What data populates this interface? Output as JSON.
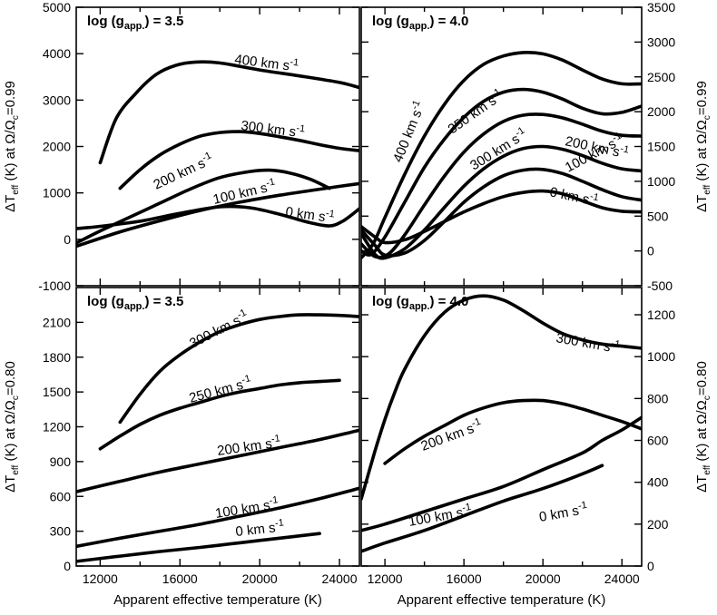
{
  "chart_data": [
    {
      "type": "line",
      "id": "tl",
      "title": "log (g_app.) = 3.5",
      "title_main": "log (g",
      "title_sub": "app.",
      "title_tail": ") = 3.5",
      "xlim": [
        10800,
        25000
      ],
      "ylim": [
        -1000,
        5000
      ],
      "yticks": [
        -1000,
        0,
        1000,
        2000,
        3000,
        4000,
        5000
      ],
      "yaxis_side": "left",
      "ylabel": "ΔTeff (K) at Ω/Ωc=0.99",
      "series": [
        {
          "name": "400 km s-1",
          "label_main": "400 km s",
          "label_sup": "-1",
          "x": [
            12000,
            12800,
            13800,
            14800,
            15800,
            16800,
            18000,
            20000,
            22000,
            24000,
            25000
          ],
          "y": [
            1650,
            2600,
            3150,
            3550,
            3750,
            3820,
            3800,
            3650,
            3520,
            3380,
            3270
          ]
        },
        {
          "name": "300 km s-1",
          "label_main": "300 km s",
          "label_sup": "-1",
          "x": [
            13000,
            14000,
            15000,
            16000,
            17000,
            18000,
            19000,
            20000,
            21000,
            22000,
            23000,
            24000,
            25000
          ],
          "y": [
            1100,
            1500,
            1820,
            2050,
            2220,
            2300,
            2320,
            2280,
            2210,
            2130,
            2040,
            1960,
            1910
          ]
        },
        {
          "name": "200 km s-1",
          "label_main": "200 km s",
          "label_sup": "-1",
          "x": [
            10800,
            12000,
            13500,
            15000,
            16500,
            18000,
            19500,
            20500,
            21500,
            22500,
            23500
          ],
          "y": [
            -80,
            180,
            480,
            780,
            1080,
            1330,
            1460,
            1490,
            1430,
            1300,
            1100
          ]
        },
        {
          "name": "100 km s-1",
          "label_main": "100 km s",
          "label_sup": "-1",
          "x": [
            10800,
            13000,
            15000,
            17000,
            19000,
            21000,
            23000,
            25000
          ],
          "y": [
            -150,
            160,
            400,
            620,
            800,
            950,
            1080,
            1200
          ]
        },
        {
          "name": "0 km s-1",
          "label_main": "0 km s",
          "label_sup": "-1",
          "x": [
            10800,
            12000,
            14000,
            16000,
            18000,
            19500,
            21000,
            22500,
            23500,
            24200,
            25000
          ],
          "y": [
            230,
            280,
            390,
            560,
            700,
            680,
            540,
            360,
            290,
            400,
            660
          ]
        }
      ]
    },
    {
      "type": "line",
      "id": "tr",
      "title": "log (g_app.) = 4.0",
      "title_main": "log (g",
      "title_sub": "app.",
      "title_tail": ") = 4.0",
      "xlim": [
        10800,
        25000
      ],
      "ylim": [
        -500,
        3500
      ],
      "yticks": [
        -500,
        0,
        500,
        1000,
        1500,
        2000,
        2500,
        3000,
        3500
      ],
      "yaxis_side": "right",
      "ylabel": "ΔTeff (K) at Ω/Ωc=0.99",
      "series": [
        {
          "name": "400 km s-1",
          "label_main": "400 km s",
          "label_sup": "-1",
          "x": [
            10800,
            11400,
            12000,
            13000,
            14000,
            15000,
            16000,
            17000,
            18000,
            19000,
            20000,
            21000,
            22000,
            23000,
            24000,
            25000
          ],
          "y": [
            -100,
            100,
            480,
            1100,
            1650,
            2100,
            2450,
            2680,
            2800,
            2850,
            2830,
            2740,
            2600,
            2470,
            2400,
            2400
          ]
        },
        {
          "name": "350 km s-1",
          "label_main": "350 km s",
          "label_sup": "-1",
          "x": [
            10800,
            11300,
            12000,
            13000,
            14000,
            15000,
            16000,
            17000,
            18000,
            19000,
            20000,
            21000,
            22000,
            23000,
            24000,
            25000
          ],
          "y": [
            0,
            -50,
            200,
            700,
            1200,
            1600,
            1920,
            2150,
            2280,
            2320,
            2280,
            2180,
            2050,
            1970,
            1990,
            2080
          ]
        },
        {
          "name": "300 km s-1",
          "label_main": "300 km s",
          "label_sup": "-1",
          "x": [
            10800,
            11500,
            12200,
            13000,
            14000,
            15000,
            16000,
            17000,
            18000,
            19000,
            20000,
            21000,
            22000,
            23000,
            24000,
            25000
          ],
          "y": [
            100,
            -80,
            -40,
            230,
            660,
            1070,
            1420,
            1680,
            1860,
            1950,
            1960,
            1910,
            1820,
            1720,
            1660,
            1650
          ]
        },
        {
          "name": "200 km s-1",
          "label_main": "200 km s",
          "label_sup": "-1",
          "x": [
            10800,
            11500,
            12000,
            13000,
            14000,
            15000,
            16000,
            17000,
            18000,
            19000,
            20000,
            21000,
            22000,
            23000,
            24000,
            25000
          ],
          "y": [
            250,
            -50,
            -100,
            30,
            300,
            620,
            930,
            1180,
            1360,
            1470,
            1500,
            1460,
            1370,
            1260,
            1180,
            1150
          ]
        },
        {
          "name": "100 km s-1",
          "label_main": "100 km s",
          "label_sup": "-1",
          "x": [
            10800,
            11500,
            12000,
            13000,
            14000,
            15000,
            16000,
            17000,
            18000,
            19000,
            20000,
            21000,
            22000,
            23000,
            24000,
            25000
          ],
          "y": [
            300,
            80,
            -60,
            -30,
            150,
            420,
            700,
            920,
            1080,
            1160,
            1170,
            1110,
            1000,
            880,
            780,
            730
          ]
        },
        {
          "name": "0 km s-1",
          "label_main": "0 km s",
          "label_sup": "-1",
          "x": [
            10800,
            11500,
            12000,
            13000,
            14000,
            15000,
            16000,
            17000,
            18000,
            19000,
            20000,
            21000,
            22000,
            23000,
            24000,
            25000
          ],
          "y": [
            350,
            200,
            120,
            160,
            280,
            420,
            560,
            680,
            780,
            840,
            860,
            820,
            720,
            620,
            570,
            560
          ]
        }
      ]
    },
    {
      "type": "line",
      "id": "bl",
      "title": "log (g_app.) = 3.5",
      "title_main": "log (g",
      "title_sub": "app.",
      "title_tail": ") = 3.5",
      "xlim": [
        10800,
        25000
      ],
      "ylim": [
        0,
        2400
      ],
      "yticks": [
        0,
        300,
        600,
        900,
        1200,
        1500,
        1800,
        2100
      ],
      "xticks": [
        12000,
        16000,
        20000,
        24000
      ],
      "yaxis_side": "left",
      "xlabel": "Apparent effective temperature (K)",
      "ylabel": "ΔTeff (K) at Ω/Ωc=0.80",
      "series": [
        {
          "name": "300 km s-1",
          "label_main": "300 km s",
          "label_sup": "-1",
          "x": [
            13000,
            14000,
            15000,
            16000,
            17000,
            18000,
            19000,
            20000,
            21000,
            22000,
            23000,
            24000,
            25000
          ],
          "y": [
            1240,
            1480,
            1680,
            1820,
            1930,
            2020,
            2080,
            2125,
            2150,
            2165,
            2165,
            2160,
            2150
          ]
        },
        {
          "name": "250 km s-1",
          "label_main": "250 km s",
          "label_sup": "-1",
          "x": [
            12000,
            13000,
            14000,
            15000,
            16000,
            17000,
            18000,
            19000,
            20000,
            21000,
            22000,
            23000,
            24000
          ],
          "y": [
            1010,
            1120,
            1220,
            1300,
            1360,
            1410,
            1460,
            1500,
            1530,
            1560,
            1580,
            1590,
            1600
          ]
        },
        {
          "name": "200 km s-1",
          "label_main": "200 km s",
          "label_sup": "-1",
          "x": [
            10800,
            13000,
            15000,
            17000,
            19000,
            21000,
            23000,
            25000
          ],
          "y": [
            640,
            730,
            810,
            880,
            950,
            1020,
            1090,
            1170
          ]
        },
        {
          "name": "100 km s-1",
          "label_main": "100 km s",
          "label_sup": "-1",
          "x": [
            10800,
            13000,
            15000,
            17000,
            19000,
            21000,
            23000,
            25000
          ],
          "y": [
            170,
            240,
            300,
            360,
            430,
            500,
            580,
            670
          ]
        },
        {
          "name": "0 km s-1",
          "label_main": "0 km s",
          "label_sup": "-1",
          "x": [
            10800,
            13000,
            15000,
            17000,
            19000,
            21000,
            23000
          ],
          "y": [
            40,
            85,
            125,
            160,
            200,
            240,
            280
          ]
        }
      ]
    },
    {
      "type": "line",
      "id": "br",
      "title": "log (g_app.) = 4.0",
      "title_main": "log (g",
      "title_sub": "app.",
      "title_tail": ") = 4.0",
      "xlim": [
        10800,
        25000
      ],
      "ylim": [
        0,
        1330
      ],
      "yticks": [
        0,
        200,
        400,
        600,
        800,
        1000,
        1200
      ],
      "xticks": [
        12000,
        16000,
        20000,
        24000
      ],
      "yaxis_side": "right",
      "xlabel": "Apparent effective temperature (K)",
      "ylabel": "ΔTeff (K) at Ω/Ωc=0.80",
      "series": [
        {
          "name": "300 km s-1",
          "label_main": "300 km s",
          "label_sup": "-1",
          "x": [
            10800,
            11500,
            12000,
            12500,
            13000,
            14000,
            15000,
            16000,
            17000,
            18000,
            19000,
            20000,
            21000,
            22000,
            23000,
            24000,
            25000
          ],
          "y": [
            320,
            550,
            700,
            830,
            940,
            1100,
            1210,
            1270,
            1290,
            1270,
            1220,
            1160,
            1110,
            1080,
            1060,
            1050,
            1040
          ]
        },
        {
          "name": "200 km s-1",
          "label_main": "200 km s",
          "label_sup": "-1",
          "x": [
            12000,
            13000,
            14000,
            15000,
            16000,
            17000,
            18000,
            19000,
            20000,
            21000,
            22000,
            23000,
            24000,
            25000
          ],
          "y": [
            490,
            560,
            620,
            670,
            720,
            755,
            780,
            790,
            790,
            775,
            750,
            720,
            690,
            655
          ]
        },
        {
          "name": "100 km s-1",
          "label_main": "100 km s",
          "label_sup": "-1",
          "x": [
            10800,
            12000,
            14000,
            16000,
            18000,
            20000,
            22000,
            23000,
            24000,
            25000
          ],
          "y": [
            170,
            200,
            260,
            320,
            380,
            460,
            540,
            600,
            650,
            710
          ]
        },
        {
          "name": "0 km s-1",
          "label_main": "0 km s",
          "label_sup": "-1",
          "x": [
            10800,
            12000,
            14000,
            16000,
            18000,
            20000,
            22000,
            23000
          ],
          "y": [
            70,
            110,
            170,
            240,
            310,
            370,
            440,
            480
          ]
        }
      ]
    }
  ],
  "axes_text": {
    "xlabel": "Apparent effective temperature (K)",
    "ylabel_top": "ΔTeff (K) at Ω/Ωc=0.99",
    "ylabel_bottom": "ΔTeff (K) at Ω/Ωc=0.80"
  }
}
